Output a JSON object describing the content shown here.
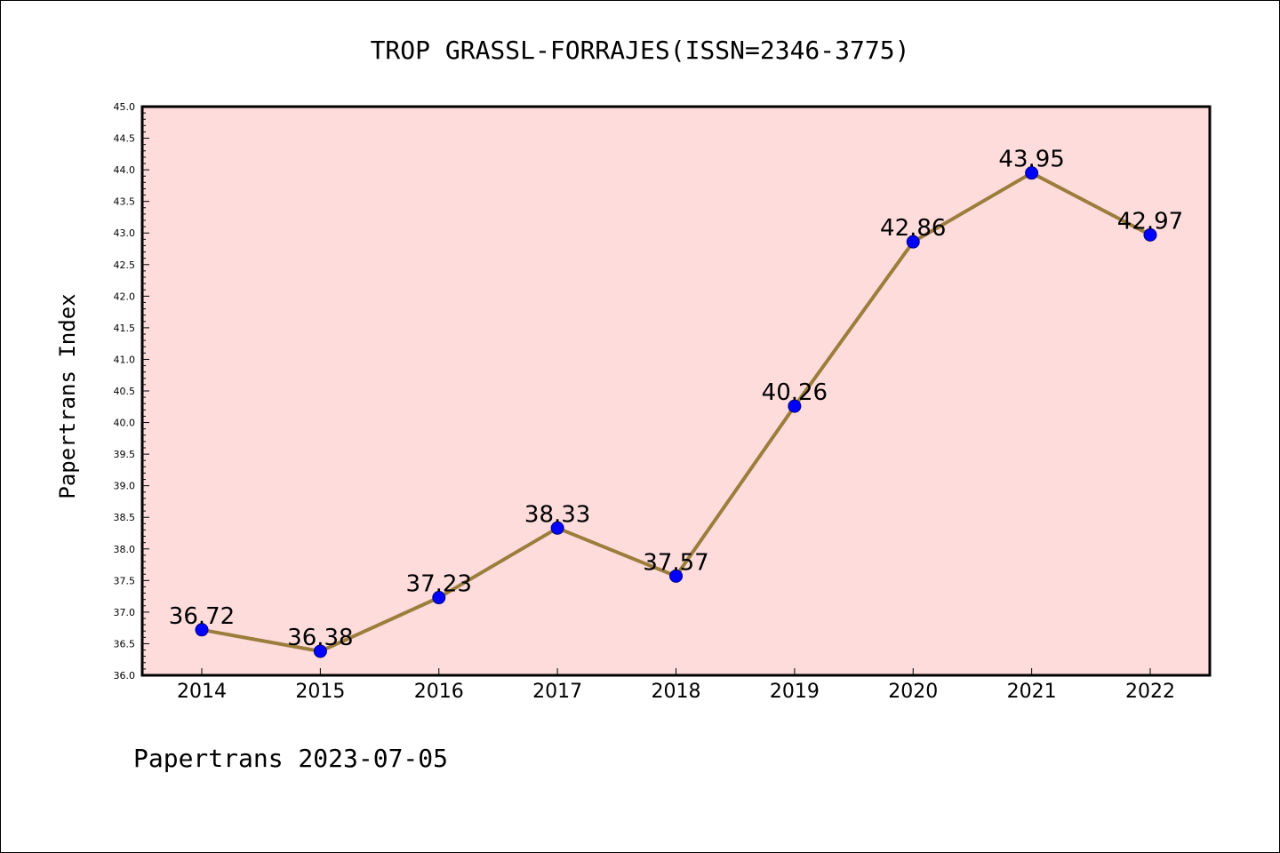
{
  "chart_data": {
    "type": "line",
    "title": "TROP GRASSL-FORRAJES(ISSN=2346-3775)",
    "ylabel": "Papertrans Index",
    "xlabel": "",
    "x": [
      "2014",
      "2015",
      "2016",
      "2017",
      "2018",
      "2019",
      "2020",
      "2021",
      "2022"
    ],
    "values": [
      36.72,
      36.38,
      37.23,
      38.33,
      37.57,
      40.26,
      42.86,
      43.95,
      42.97
    ],
    "value_labels": [
      "36.72",
      "36.38",
      "37.23",
      "38.33",
      "37.57",
      "40.26",
      "42.86",
      "43.95",
      "42.97"
    ],
    "ylim": [
      36.0,
      45.0
    ],
    "yticks": [
      "36.0",
      "36.5",
      "37.0",
      "37.5",
      "38.0",
      "38.5",
      "39.0",
      "39.5",
      "40.0",
      "40.5",
      "41.0",
      "41.5",
      "42.0",
      "42.5",
      "43.0",
      "43.5",
      "44.0",
      "44.5",
      "45.0"
    ],
    "grid": false,
    "colors": {
      "plot_background": "#ffdcdc",
      "line": "#9b7d3c",
      "marker": "#0000ff",
      "marker_edge": "#000080"
    }
  },
  "footer": {
    "text": "Papertrans 2023-07-05"
  }
}
